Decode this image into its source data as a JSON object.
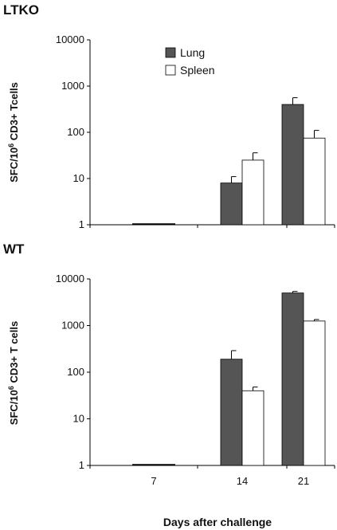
{
  "chart_data": [
    {
      "type": "bar",
      "panel_label": "LTKO",
      "ylabel_parts": [
        "SFC/10",
        "6",
        " CD3+ Tcells"
      ],
      "yscale": "log",
      "ylim": [
        1,
        10000
      ],
      "yticks": [
        "1",
        "10",
        "100",
        "1000",
        "10000"
      ],
      "categories": [
        "7",
        "14",
        "21"
      ],
      "show_xticks": false,
      "xlabel": "",
      "series": [
        {
          "name": "Lung",
          "color": "#555555",
          "values": [
            1,
            8,
            400
          ],
          "errors_upper": [
            1,
            11,
            560
          ]
        },
        {
          "name": "Spleen",
          "color": "#ffffff",
          "values": [
            1,
            25,
            75
          ],
          "errors_upper": [
            1,
            36,
            110
          ]
        }
      ],
      "legend": {
        "placement": "top-center",
        "entries": [
          "Lung",
          "Spleen"
        ]
      }
    },
    {
      "type": "bar",
      "panel_label": "WT",
      "ylabel_parts": [
        "SFC/10",
        "6",
        " CD3+ T cells"
      ],
      "yscale": "log",
      "ylim": [
        1,
        10000
      ],
      "yticks": [
        "1",
        "10",
        "100",
        "1000",
        "10000"
      ],
      "categories": [
        "7",
        "14",
        "21"
      ],
      "show_xticks": true,
      "xlabel": "Days after challenge",
      "series": [
        {
          "name": "Lung",
          "color": "#555555",
          "values": [
            1,
            190,
            5000
          ],
          "errors_upper": [
            1,
            290,
            5400
          ]
        },
        {
          "name": "Spleen",
          "color": "#ffffff",
          "values": [
            1,
            40,
            1250
          ],
          "errors_upper": [
            1,
            48,
            1350
          ]
        }
      ]
    }
  ]
}
